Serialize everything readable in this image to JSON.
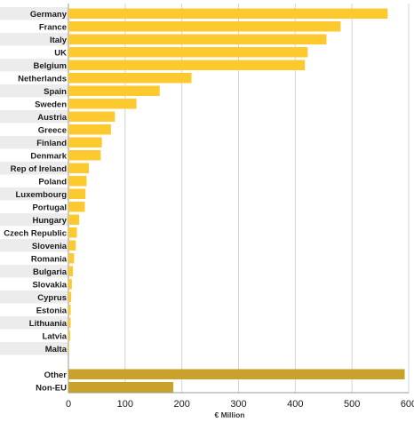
{
  "chart_data": {
    "type": "bar",
    "orientation": "horizontal",
    "xlabel": "€ Million",
    "xlim": [
      0,
      600
    ],
    "xticks": [
      0,
      100,
      200,
      300,
      400,
      500,
      600
    ],
    "grid": true,
    "colors": {
      "eu_bar": "#fcc92e",
      "other_bar": "#c9a22b",
      "label_band": "#ececec",
      "grid": "#d4d4d4"
    },
    "groups": [
      {
        "name": "eu",
        "categories": [
          "Germany",
          "France",
          "Italy",
          "UK",
          "Belgium",
          "Netherlands",
          "Spain",
          "Sweden",
          "Austria",
          "Greece",
          "Finland",
          "Denmark",
          "Rep of Ireland",
          "Poland",
          "Luxembourg",
          "Portugal",
          "Hungary",
          "Czech Republic",
          "Slovenia",
          "Romania",
          "Bulgaria",
          "Slovakia",
          "Cyprus",
          "Estonia",
          "Lithuania",
          "Latvia",
          "Malta"
        ],
        "values": [
          563,
          480,
          455,
          422,
          417,
          217,
          161,
          120,
          82,
          75,
          59,
          57,
          36,
          32,
          30,
          29,
          19,
          15,
          13,
          10,
          8,
          6,
          5,
          4,
          4,
          3,
          1
        ]
      },
      {
        "name": "other",
        "categories": [
          "Other",
          "Non-EU"
        ],
        "values": [
          593,
          185
        ]
      }
    ]
  }
}
